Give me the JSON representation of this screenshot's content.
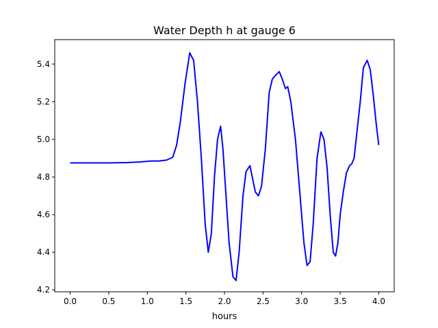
{
  "chart_data": {
    "type": "line",
    "title": "Water Depth h at gauge 6",
    "xlabel": "hours",
    "ylabel": "",
    "xlim": [
      -0.2,
      4.2
    ],
    "ylim": [
      4.19,
      5.53
    ],
    "xticks": [
      0.0,
      0.5,
      1.0,
      1.5,
      2.0,
      2.5,
      3.0,
      3.5,
      4.0
    ],
    "xtick_labels": [
      "0.0",
      "0.5",
      "1.0",
      "1.5",
      "2.0",
      "2.5",
      "3.0",
      "3.5",
      "4.0"
    ],
    "yticks": [
      4.2,
      4.4,
      4.6,
      4.8,
      5.0,
      5.2,
      5.4
    ],
    "ytick_labels": [
      "4.2",
      "4.4",
      "4.6",
      "4.8",
      "5.0",
      "5.2",
      "5.4"
    ],
    "grid": false,
    "color": "#0000ff",
    "series": [
      {
        "x": [
          0.0,
          0.25,
          0.5,
          0.75,
          0.9,
          1.05,
          1.15,
          1.25,
          1.33,
          1.38,
          1.43,
          1.49,
          1.55,
          1.6,
          1.65,
          1.7,
          1.75,
          1.79,
          1.83,
          1.87,
          1.91,
          1.95,
          1.98,
          2.02,
          2.06,
          2.11,
          2.15,
          2.19,
          2.24,
          2.28,
          2.33,
          2.36,
          2.4,
          2.44,
          2.48,
          2.53,
          2.58,
          2.62,
          2.66,
          2.71,
          2.75,
          2.79,
          2.82,
          2.86,
          2.92,
          2.98,
          3.03,
          3.07,
          3.11,
          3.15,
          3.2,
          3.25,
          3.29,
          3.33,
          3.37,
          3.41,
          3.44,
          3.47,
          3.5,
          3.54,
          3.58,
          3.62,
          3.65,
          3.68,
          3.72,
          3.76,
          3.8,
          3.85,
          3.89,
          3.93,
          3.97,
          4.0
        ],
        "y": [
          4.875,
          4.875,
          4.875,
          4.877,
          4.88,
          4.885,
          4.885,
          4.89,
          4.905,
          4.97,
          5.1,
          5.3,
          5.46,
          5.42,
          5.2,
          4.9,
          4.55,
          4.4,
          4.5,
          4.8,
          5.0,
          5.07,
          4.95,
          4.7,
          4.45,
          4.27,
          4.25,
          4.4,
          4.7,
          4.83,
          4.86,
          4.8,
          4.72,
          4.7,
          4.75,
          4.95,
          5.25,
          5.32,
          5.34,
          5.36,
          5.32,
          5.27,
          5.28,
          5.2,
          5.0,
          4.7,
          4.45,
          4.33,
          4.35,
          4.55,
          4.9,
          5.04,
          5.0,
          4.85,
          4.6,
          4.4,
          4.38,
          4.45,
          4.6,
          4.72,
          4.82,
          4.86,
          4.87,
          4.9,
          5.05,
          5.2,
          5.38,
          5.42,
          5.37,
          5.23,
          5.07,
          4.97
        ]
      }
    ]
  }
}
